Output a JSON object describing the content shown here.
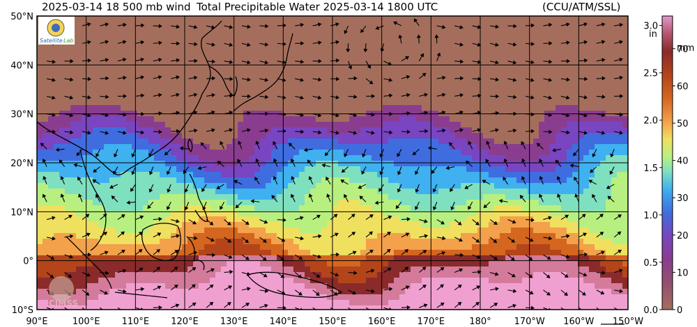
{
  "header": {
    "left_title": "2025-03-14 18 500 mb wind",
    "center_title": "Total Precipitable Water  2025-03-14 1800 UTC",
    "right_title": "(CCU/ATM/SSL)"
  },
  "logos": {
    "top_left": "Satellite Lab",
    "bottom_left": "CIMSS"
  },
  "map": {
    "product": "Total Precipitable Water",
    "overlay": "500 mb wind vectors",
    "lon_range": [
      90,
      210
    ],
    "lat_range": [
      -10,
      50
    ],
    "lat_labels": [
      "50°N",
      "40°N",
      "30°N",
      "20°N",
      "10°N",
      "0°",
      "10°S"
    ],
    "lon_labels": [
      "90°E",
      "100°E",
      "110°E",
      "120°E",
      "130°E",
      "140°E",
      "150°E",
      "160°E",
      "170°E",
      "180°",
      "170°W",
      "160°W",
      "150°W"
    ]
  },
  "colorbar": {
    "inch_unit": "in",
    "mm_unit": "mm",
    "inch_ticks": [
      "3.0",
      "2.5",
      "2.0",
      "1.5",
      "1.0",
      "0.5",
      "0.0"
    ],
    "mm_ticks": [
      "70",
      "60",
      "50",
      "40",
      "30",
      "20",
      "10",
      "0"
    ],
    "colors": [
      "#a56e5c",
      "#8a3d8f",
      "#7a45c0",
      "#3f6de0",
      "#3fb0f0",
      "#7fe0c0",
      "#b7f080",
      "#f0e060",
      "#f3a14a",
      "#d4661f",
      "#b4441a",
      "#8a2a2a",
      "#d47a9a",
      "#f0a0d0"
    ]
  }
}
